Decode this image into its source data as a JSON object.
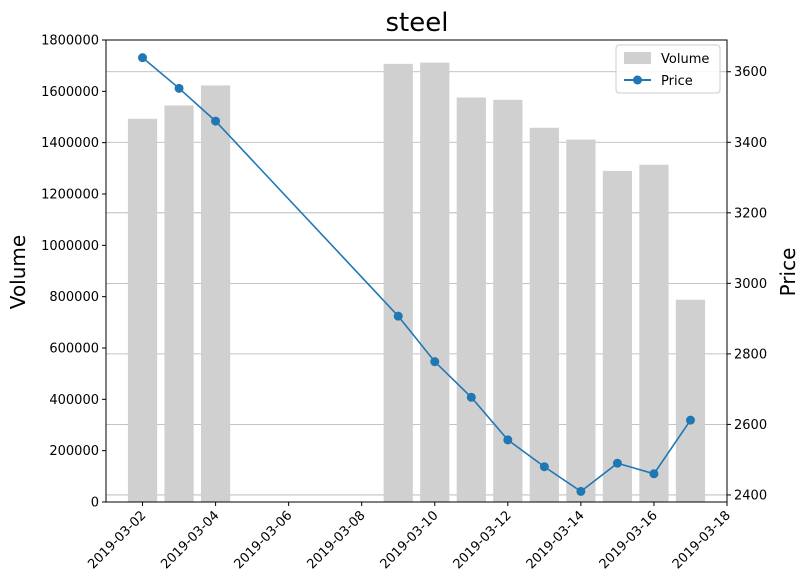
{
  "chart_data": {
    "type": "bar+line",
    "title": "steel",
    "x": [
      "2019-03-02",
      "2019-03-03",
      "2019-03-04",
      "2019-03-09",
      "2019-03-10",
      "2019-03-11",
      "2019-03-12",
      "2019-03-13",
      "2019-03-14",
      "2019-03-15",
      "2019-03-16",
      "2019-03-17"
    ],
    "x_ticks": [
      "2019-03-02",
      "2019-03-04",
      "2019-03-06",
      "2019-03-08",
      "2019-03-10",
      "2019-03-12",
      "2019-03-14",
      "2019-03-16",
      "2019-03-18"
    ],
    "xlim": [
      "2019-03-01",
      "2019-03-18"
    ],
    "series": [
      {
        "name": "Volume",
        "kind": "bar",
        "axis": "left",
        "color": "#d0d0d0",
        "values": [
          1493000,
          1545000,
          1623000,
          1707000,
          1712000,
          1576000,
          1567000,
          1458000,
          1412000,
          1290000,
          1314000,
          788000
        ]
      },
      {
        "name": "Price",
        "kind": "line",
        "axis": "right",
        "color": "#1f77b4",
        "values": [
          3640,
          3553,
          3460,
          2907,
          2778,
          2677,
          2556,
          2480,
          2410,
          2490,
          2460,
          2612
        ]
      }
    ],
    "ylabel_left": "Volume",
    "ylabel_right": "Price",
    "ylim_left": [
      0,
      1800000
    ],
    "yticks_left": [
      "0",
      "200000",
      "400000",
      "600000",
      "800000",
      "1000000",
      "1200000",
      "1400000",
      "1600000",
      "1800000"
    ],
    "ylim_right": [
      2380,
      3690
    ],
    "yticks_right": [
      "2400",
      "2600",
      "2800",
      "3000",
      "3200",
      "3400",
      "3600"
    ],
    "grid": "horizontal (right axis)",
    "legend_position": "top-right"
  }
}
